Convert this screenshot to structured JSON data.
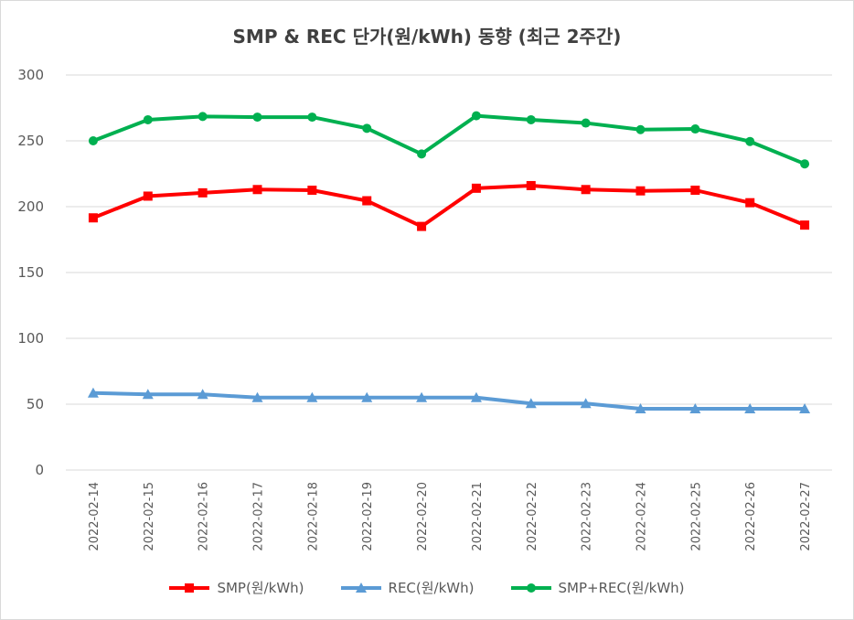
{
  "chart_data": {
    "type": "line",
    "title": "SMP & REC 단가(원/kWh) 동향 (최근 2주간)",
    "xlabel": "",
    "ylabel": "",
    "ylim": [
      0,
      300
    ],
    "yticks": [
      "0",
      "50",
      "100",
      "150",
      "200",
      "250",
      "300"
    ],
    "categories": [
      "2022-02-14",
      "2022-02-15",
      "2022-02-16",
      "2022-02-17",
      "2022-02-18",
      "2022-02-19",
      "2022-02-20",
      "2022-02-21",
      "2022-02-22",
      "2022-02-23",
      "2022-02-24",
      "2022-02-25",
      "2022-02-26",
      "2022-02-27"
    ],
    "series": [
      {
        "name": "SMP(원/kWh)",
        "color": "#ff0000",
        "marker": "square",
        "values": [
          191.5,
          208,
          210.5,
          213,
          212.5,
          204.5,
          185,
          214,
          216,
          213,
          212,
          212.5,
          203,
          186
        ]
      },
      {
        "name": "REC(원/kWh)",
        "color": "#5b9bd5",
        "marker": "triangle",
        "values": [
          58.5,
          57.5,
          57.5,
          55,
          55,
          55,
          55,
          55,
          50.5,
          50.5,
          46.5,
          46.5,
          46.5,
          46.5
        ]
      },
      {
        "name": "SMP+REC(원/kWh)",
        "color": "#00b050",
        "marker": "circle",
        "values": [
          250,
          266,
          268.5,
          268,
          268,
          259.5,
          240,
          269,
          266,
          263.5,
          258.5,
          259,
          249.5,
          232.5
        ]
      }
    ],
    "grid": true,
    "legend": "bottom"
  }
}
